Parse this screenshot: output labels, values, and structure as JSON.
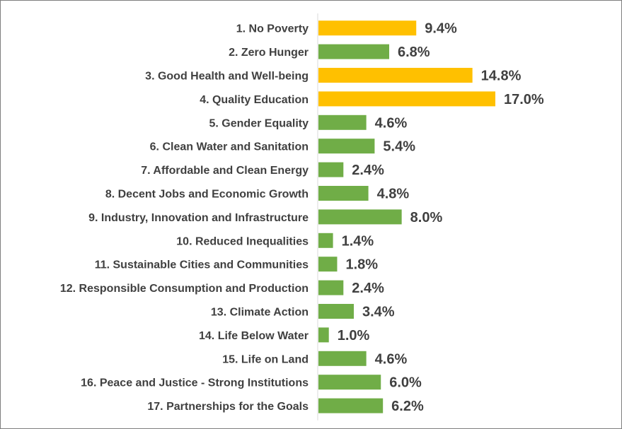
{
  "chart_data": {
    "type": "bar",
    "orientation": "horizontal",
    "categories": [
      "1. No Poverty",
      "2. Zero Hunger",
      "3. Good Health and Well-being",
      "4. Quality Education",
      "5. Gender Equality",
      "6. Clean Water and Sanitation",
      "7. Affordable and Clean Energy",
      "8. Decent Jobs and Economic Growth",
      "9. Industry, Innovation and Infrastructure",
      "10. Reduced Inequalities",
      "11. Sustainable Cities and Communities",
      "12. Responsible Consumption and Production",
      "13. Climate Action",
      "14. Life Below Water",
      "15. Life on Land",
      "16. Peace and Justice - Strong Institutions",
      "17. Partnerships for the Goals"
    ],
    "values": [
      9.4,
      6.8,
      14.8,
      17.0,
      4.6,
      5.4,
      2.4,
      4.8,
      8.0,
      1.4,
      1.8,
      2.4,
      3.4,
      1.0,
      4.6,
      6.0,
      6.2
    ],
    "value_labels": [
      "9.4%",
      "6.8%",
      "14.8%",
      "17.0%",
      "4.6%",
      "5.4%",
      "2.4%",
      "4.8%",
      "8.0%",
      "1.4%",
      "1.8%",
      "2.4%",
      "3.4%",
      "1.0%",
      "4.6%",
      "6.0%",
      "6.2%"
    ],
    "highlighted": [
      true,
      false,
      true,
      true,
      false,
      false,
      false,
      false,
      false,
      false,
      false,
      false,
      false,
      false,
      false,
      false,
      false
    ],
    "colors": {
      "default": "#70ad47",
      "highlight": "#ffc000",
      "axis": "#d9d9d9"
    },
    "title": "",
    "xlabel": "",
    "ylabel": "",
    "xlim": [
      0,
      17.0
    ],
    "grid": false,
    "legend": "none"
  }
}
